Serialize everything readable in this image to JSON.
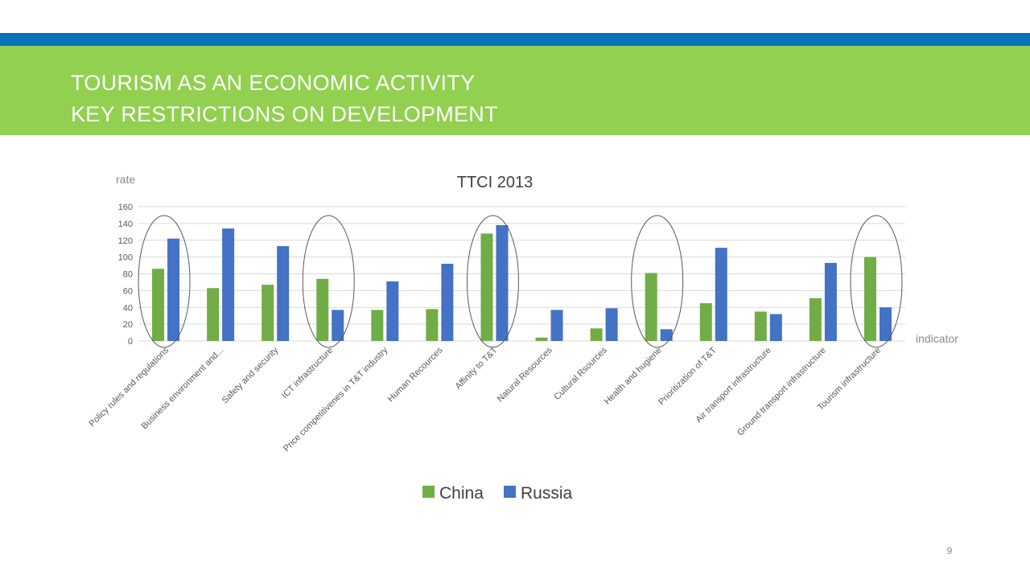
{
  "slide": {
    "title_line1": "TOURISM AS AN ECONOMIC ACTIVITY",
    "title_line2": "KEY RESTRICTIONS ON DEVELOPMENT",
    "page_number": "9"
  },
  "colors": {
    "header_blue": "#0a72bd",
    "header_green": "#92d050",
    "china": "#70ad47",
    "russia": "#4472c4",
    "gridline": "#d9d9d9",
    "ellipse": "#595959"
  },
  "chart_data": {
    "type": "bar",
    "title": "TTCI 2013",
    "ylabel": "rate",
    "xlabel": "indicator",
    "ylim": [
      0,
      160
    ],
    "yticks": [
      0,
      20,
      40,
      60,
      80,
      100,
      120,
      140,
      160
    ],
    "grid": true,
    "legend_position": "bottom",
    "categories": [
      "Policy rules and regulations",
      "Business environment and...",
      "Safety and security",
      "ICT infrastructure",
      "Price competitivenes in T&T industry",
      "Human Recources",
      "Affinity to T&T",
      "Natural Resources",
      "Cultural Rsources",
      "Health and hugiene",
      "Prioritization of T&T",
      "Air transport infrastructure",
      "Ground transport infrastructure",
      "Tourism infrastructure"
    ],
    "series": [
      {
        "name": "China",
        "values": [
          86,
          63,
          67,
          74,
          37,
          38,
          128,
          4,
          15,
          81,
          45,
          35,
          51,
          100
        ]
      },
      {
        "name": "Russia",
        "values": [
          122,
          134,
          113,
          37,
          71,
          92,
          138,
          37,
          39,
          14,
          111,
          32,
          93,
          40
        ]
      }
    ],
    "highlighted_categories": [
      "Policy rules and regulations",
      "ICT infrastructure",
      "Affinity to T&T",
      "Health and hugiene",
      "Tourism infrastructure"
    ]
  }
}
